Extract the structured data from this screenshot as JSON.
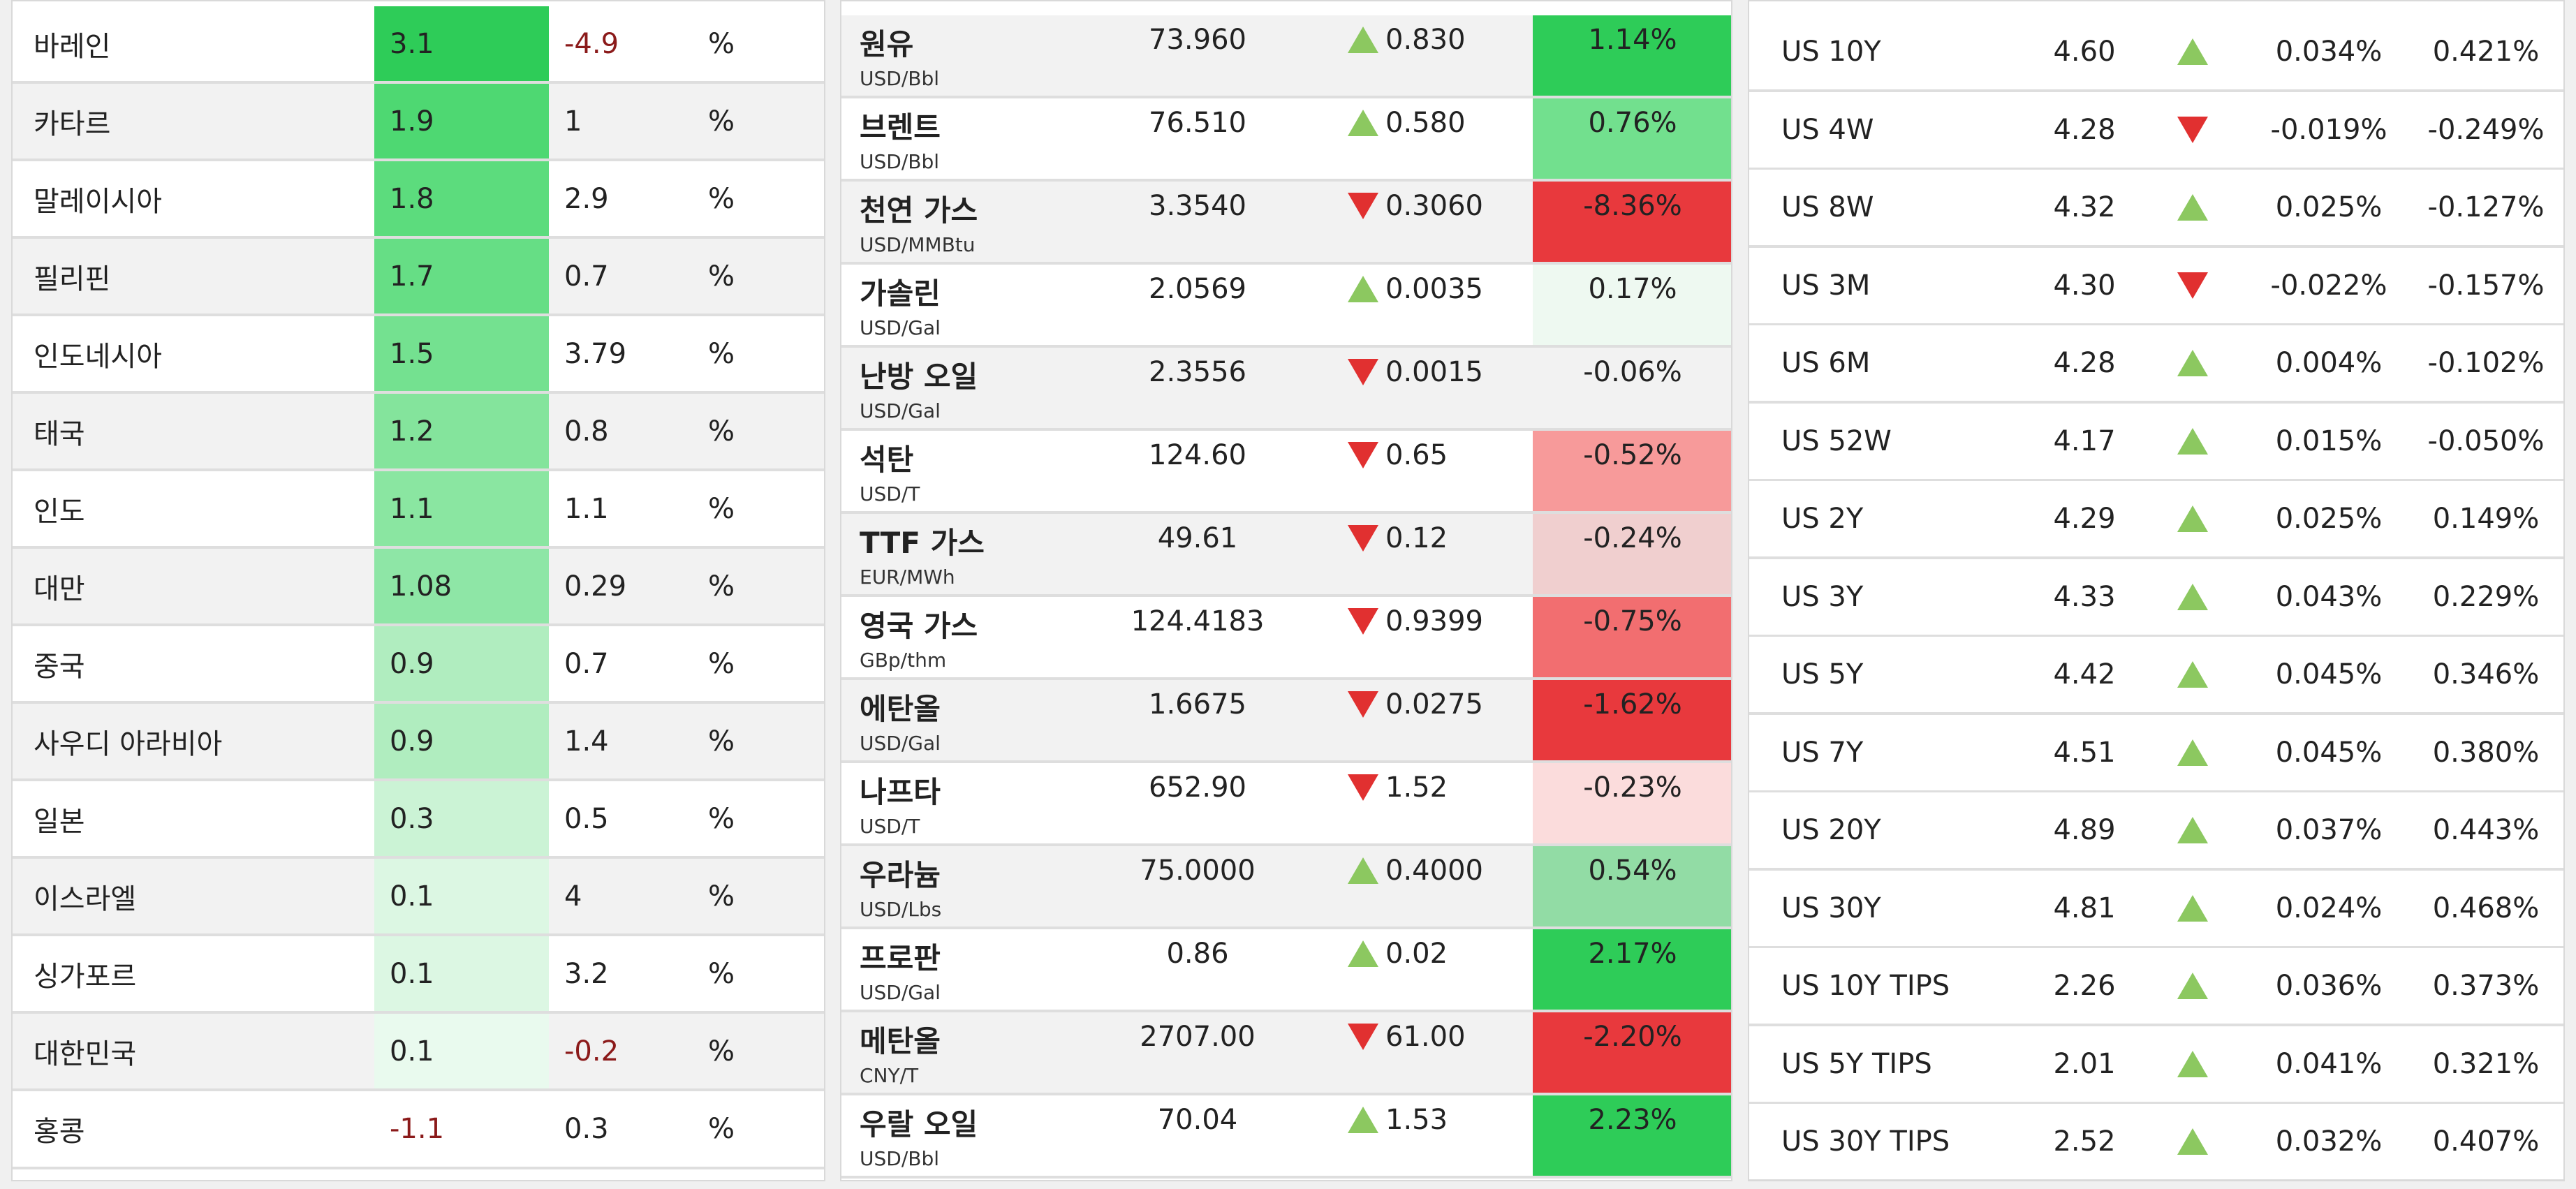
{
  "colors": {
    "green_strong": "#2ecc58",
    "green_mid": "#5cdc7d",
    "green_light": "#8ee6a6",
    "green_pale": "#b6efc6",
    "green_faint": "#d9f6e1",
    "green_ghost": "#eef9f1",
    "red_strong": "#e8393d",
    "red_mid": "#f26e70",
    "red_light": "#f79a9a",
    "red_pale": "#f0cfcf",
    "red_faint": "#fbdcdc",
    "arrow_up": "#8cc860",
    "arrow_down": "#e13030",
    "negative_text": "#8b1a1a"
  },
  "growth_table": {
    "rows": [
      {
        "country": "바레인",
        "value": "3.1",
        "previous": "-4.9",
        "unit": "%",
        "value_negative": false,
        "previous_negative": true,
        "color": "#2ecc58"
      },
      {
        "country": "카타르",
        "value": "1.9",
        "previous": "1",
        "unit": "%",
        "value_negative": false,
        "previous_negative": false,
        "color": "#4ed872"
      },
      {
        "country": "말레이시아",
        "value": "1.8",
        "previous": "2.9",
        "unit": "%",
        "value_negative": false,
        "previous_negative": false,
        "color": "#5cdc7d"
      },
      {
        "country": "필리핀",
        "value": "1.7",
        "previous": "0.7",
        "unit": "%",
        "value_negative": false,
        "previous_negative": false,
        "color": "#66de85"
      },
      {
        "country": "인도네시아",
        "value": "1.5",
        "previous": "3.79",
        "unit": "%",
        "value_negative": false,
        "previous_negative": false,
        "color": "#74e190"
      },
      {
        "country": "태국",
        "value": "1.2",
        "previous": "0.8",
        "unit": "%",
        "value_negative": false,
        "previous_negative": false,
        "color": "#84e49c"
      },
      {
        "country": "인도",
        "value": "1.1",
        "previous": "1.1",
        "unit": "%",
        "value_negative": false,
        "previous_negative": false,
        "color": "#8ae6a1"
      },
      {
        "country": "대만",
        "value": "1.08",
        "previous": "0.29",
        "unit": "%",
        "value_negative": false,
        "previous_negative": false,
        "color": "#8ee6a6"
      },
      {
        "country": "중국",
        "value": "0.9",
        "previous": "0.7",
        "unit": "%",
        "value_negative": false,
        "previous_negative": false,
        "color": "#b0edbf"
      },
      {
        "country": "사우디 아라비아",
        "value": "0.9",
        "previous": "1.4",
        "unit": "%",
        "value_negative": false,
        "previous_negative": false,
        "color": "#b0edbf"
      },
      {
        "country": "일본",
        "value": "0.3",
        "previous": "0.5",
        "unit": "%",
        "value_negative": false,
        "previous_negative": false,
        "color": "#cbf3d5"
      },
      {
        "country": "이스라엘",
        "value": "0.1",
        "previous": "4",
        "unit": "%",
        "value_negative": false,
        "previous_negative": false,
        "color": "#dcf7e3"
      },
      {
        "country": "싱가포르",
        "value": "0.1",
        "previous": "3.2",
        "unit": "%",
        "value_negative": false,
        "previous_negative": false,
        "color": "#dcf7e3"
      },
      {
        "country": "대한민국",
        "value": "0.1",
        "previous": "-0.2",
        "unit": "%",
        "value_negative": false,
        "previous_negative": true,
        "color": "#e9faee"
      },
      {
        "country": "홍콩",
        "value": "-1.1",
        "previous": "0.3",
        "unit": "%",
        "value_negative": true,
        "previous_negative": false,
        "color": ""
      }
    ]
  },
  "commodities": {
    "rows": [
      {
        "name": "원유",
        "unit": "USD/Bbl",
        "price": "73.960",
        "direction": "up",
        "change": "0.830",
        "pct": "1.14%",
        "color": "#2ecc58"
      },
      {
        "name": "브렌트",
        "unit": "USD/Bbl",
        "price": "76.510",
        "direction": "up",
        "change": "0.580",
        "pct": "0.76%",
        "color": "#72e08e"
      },
      {
        "name": "천연 가스",
        "unit": "USD/MMBtu",
        "price": "3.3540",
        "direction": "down",
        "change": "0.3060",
        "pct": "-8.36%",
        "color": "#e8393d"
      },
      {
        "name": "가솔린",
        "unit": "USD/Gal",
        "price": "2.0569",
        "direction": "up",
        "change": "0.0035",
        "pct": "0.17%",
        "color": "#eef9f1"
      },
      {
        "name": "난방 오일",
        "unit": "USD/Gal",
        "price": "2.3556",
        "direction": "down",
        "change": "0.0015",
        "pct": "-0.06%",
        "color": ""
      },
      {
        "name": "석탄",
        "unit": "USD/T",
        "price": "124.60",
        "direction": "down",
        "change": "0.65",
        "pct": "-0.52%",
        "color": "#f79a9a"
      },
      {
        "name": "TTF 가스",
        "unit": "EUR/MWh",
        "price": "49.61",
        "direction": "down",
        "change": "0.12",
        "pct": "-0.24%",
        "color": "#f0cfcf"
      },
      {
        "name": "영국 가스",
        "unit": "GBp/thm",
        "price": "124.4183",
        "direction": "down",
        "change": "0.9399",
        "pct": "-0.75%",
        "color": "#f26e70"
      },
      {
        "name": "에탄올",
        "unit": "USD/Gal",
        "price": "1.6675",
        "direction": "down",
        "change": "0.0275",
        "pct": "-1.62%",
        "color": "#e8393d"
      },
      {
        "name": "나프타",
        "unit": "USD/T",
        "price": "652.90",
        "direction": "down",
        "change": "1.52",
        "pct": "-0.23%",
        "color": "#fbdcdc"
      },
      {
        "name": "우라늄",
        "unit": "USD/Lbs",
        "price": "75.0000",
        "direction": "up",
        "change": "0.4000",
        "pct": "0.54%",
        "color": "#92dca5"
      },
      {
        "name": "프로판",
        "unit": "USD/Gal",
        "price": "0.86",
        "direction": "up",
        "change": "0.02",
        "pct": "2.17%",
        "color": "#2ecc58"
      },
      {
        "name": "메탄올",
        "unit": "CNY/T",
        "price": "2707.00",
        "direction": "down",
        "change": "61.00",
        "pct": "-2.20%",
        "color": "#e8393d"
      },
      {
        "name": "우랄 오일",
        "unit": "USD/Bbl",
        "price": "70.04",
        "direction": "up",
        "change": "1.53",
        "pct": "2.23%",
        "color": "#2ecc58"
      }
    ]
  },
  "treasuries": {
    "rows": [
      {
        "name": "US 10Y",
        "yield": "4.60",
        "direction": "up",
        "change": "0.034%",
        "change2": "0.421%"
      },
      {
        "name": "US 4W",
        "yield": "4.28",
        "direction": "down",
        "change": "-0.019%",
        "change2": "-0.249%"
      },
      {
        "name": "US 8W",
        "yield": "4.32",
        "direction": "up",
        "change": "0.025%",
        "change2": "-0.127%"
      },
      {
        "name": "US 3M",
        "yield": "4.30",
        "direction": "down",
        "change": "-0.022%",
        "change2": "-0.157%"
      },
      {
        "name": "US 6M",
        "yield": "4.28",
        "direction": "up",
        "change": "0.004%",
        "change2": "-0.102%"
      },
      {
        "name": "US 52W",
        "yield": "4.17",
        "direction": "up",
        "change": "0.015%",
        "change2": "-0.050%"
      },
      {
        "name": "US 2Y",
        "yield": "4.29",
        "direction": "up",
        "change": "0.025%",
        "change2": "0.149%"
      },
      {
        "name": "US 3Y",
        "yield": "4.33",
        "direction": "up",
        "change": "0.043%",
        "change2": "0.229%"
      },
      {
        "name": "US 5Y",
        "yield": "4.42",
        "direction": "up",
        "change": "0.045%",
        "change2": "0.346%"
      },
      {
        "name": "US 7Y",
        "yield": "4.51",
        "direction": "up",
        "change": "0.045%",
        "change2": "0.380%"
      },
      {
        "name": "US 20Y",
        "yield": "4.89",
        "direction": "up",
        "change": "0.037%",
        "change2": "0.443%"
      },
      {
        "name": "US 30Y",
        "yield": "4.81",
        "direction": "up",
        "change": "0.024%",
        "change2": "0.468%"
      },
      {
        "name": "US 10Y TIPS",
        "yield": "2.26",
        "direction": "up",
        "change": "0.036%",
        "change2": "0.373%"
      },
      {
        "name": "US 5Y TIPS",
        "yield": "2.01",
        "direction": "up",
        "change": "0.041%",
        "change2": "0.321%"
      },
      {
        "name": "US 30Y TIPS",
        "yield": "2.52",
        "direction": "up",
        "change": "0.032%",
        "change2": "0.407%"
      }
    ]
  }
}
